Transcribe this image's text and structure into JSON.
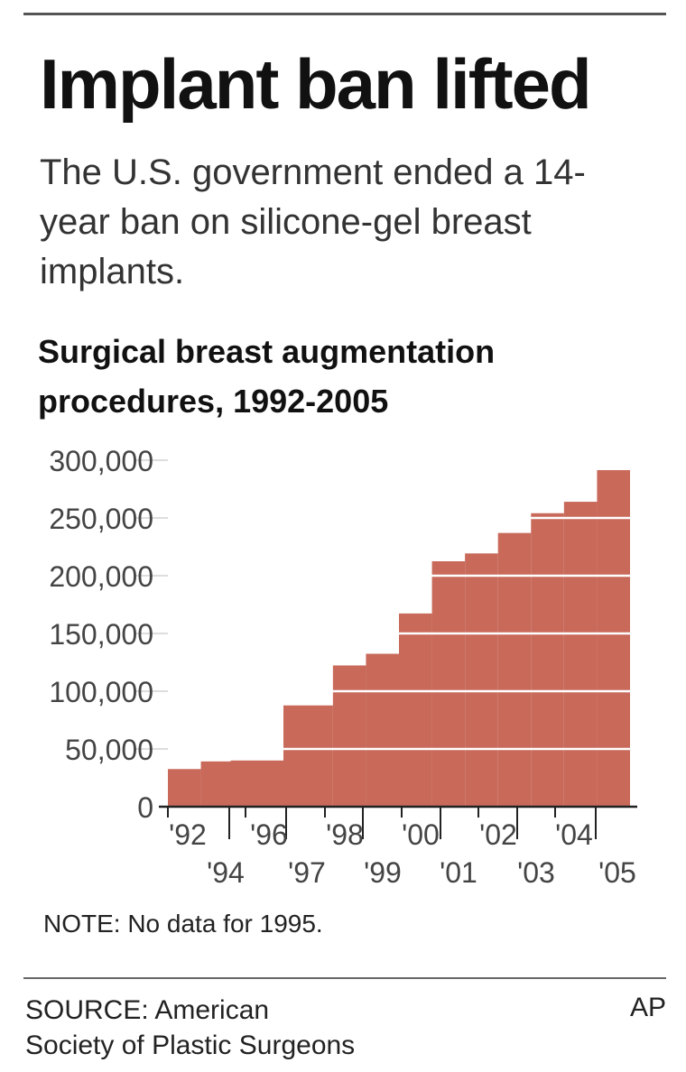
{
  "header": {
    "title": "Implant ban lifted",
    "subtitle": "The U.S. government ended a 14-year ban on silicone-gel breast implants."
  },
  "chart_data": {
    "type": "area",
    "title": "Surgical breast augmentation procedures, 1992-2005",
    "x": [
      1992,
      1993,
      1994,
      1996,
      1997,
      1998,
      1999,
      2000,
      2001,
      2002,
      2003,
      2004,
      2005
    ],
    "values": [
      32600,
      39200,
      40000,
      87700,
      122300,
      132400,
      167300,
      212500,
      219300,
      237000,
      254100,
      264000,
      291400
    ],
    "ylim": [
      0,
      300000
    ],
    "yticks": [
      0,
      50000,
      100000,
      150000,
      200000,
      250000,
      300000
    ],
    "ytick_labels": [
      "0",
      "50,000",
      "100,000",
      "150,000",
      "200,000",
      "250,000",
      "300,000"
    ],
    "xtick_labels_upper": [
      "'92",
      "'96",
      "'98",
      "'00",
      "'02",
      "'04"
    ],
    "xtick_labels_lower": [
      "'94",
      "'97",
      "'99",
      "'01",
      "'03",
      "'05"
    ],
    "grid": true,
    "colors": {
      "fill": "#c8695a",
      "grid": "#dddddd",
      "axis": "#222222"
    }
  },
  "note": "NOTE: No data for 1995.",
  "footer": {
    "source_line1": "SOURCE: American",
    "source_line2": "Society of Plastic Surgeons",
    "credit": "AP"
  }
}
